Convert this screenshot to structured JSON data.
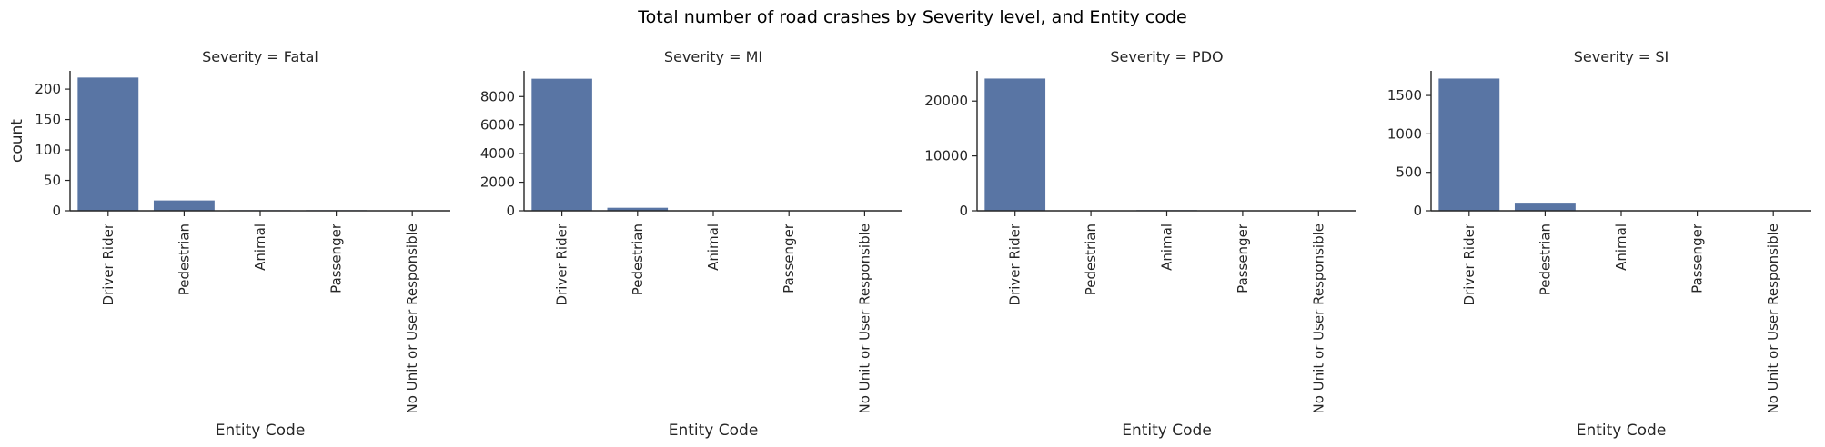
{
  "figure": {
    "title": "Total number of road crashes by Severity level, and Entity code",
    "bar_color": "#5975a4",
    "axis_color": "#262626"
  },
  "chart_data": [
    {
      "type": "bar",
      "title": "Severity = Fatal",
      "categories": [
        "Driver Rider",
        "Pedestrian",
        "Animal",
        "Passenger",
        "No Unit or User Responsible"
      ],
      "values": [
        219,
        17,
        1,
        1,
        0
      ],
      "xlabel": "Entity Code",
      "ylabel": "count",
      "ylim": [
        0,
        230
      ],
      "yticks": [
        0,
        50,
        100,
        150,
        200
      ],
      "ytick_labels": [
        "0",
        "50",
        "100",
        "150",
        "200"
      ]
    },
    {
      "type": "bar",
      "title": "Severity = MI",
      "categories": [
        "Driver Rider",
        "Pedestrian",
        "Animal",
        "Passenger",
        "No Unit or User Responsible"
      ],
      "values": [
        9250,
        210,
        20,
        5,
        2
      ],
      "xlabel": "Entity Code",
      "ylabel": "",
      "ylim": [
        0,
        9800
      ],
      "yticks": [
        0,
        2000,
        4000,
        6000,
        8000
      ],
      "ytick_labels": [
        "0",
        "2000",
        "4000",
        "6000",
        "8000"
      ]
    },
    {
      "type": "bar",
      "title": "Severity = PDO",
      "categories": [
        "Driver Rider",
        "Pedestrian",
        "Animal",
        "Passenger",
        "No Unit or User Responsible"
      ],
      "values": [
        24100,
        60,
        120,
        10,
        30
      ],
      "xlabel": "Entity Code",
      "ylabel": "",
      "ylim": [
        0,
        25500
      ],
      "yticks": [
        0,
        10000,
        20000
      ],
      "ytick_labels": [
        "0",
        "10000",
        "20000"
      ]
    },
    {
      "type": "bar",
      "title": "Severity = SI",
      "categories": [
        "Driver Rider",
        "Pedestrian",
        "Animal",
        "Passenger",
        "No Unit or User Responsible"
      ],
      "values": [
        1720,
        105,
        5,
        2,
        1
      ],
      "xlabel": "Entity Code",
      "ylabel": "",
      "ylim": [
        0,
        1820
      ],
      "yticks": [
        0,
        500,
        1000,
        1500
      ],
      "ytick_labels": [
        "0",
        "500",
        "1000",
        "1500"
      ]
    }
  ]
}
